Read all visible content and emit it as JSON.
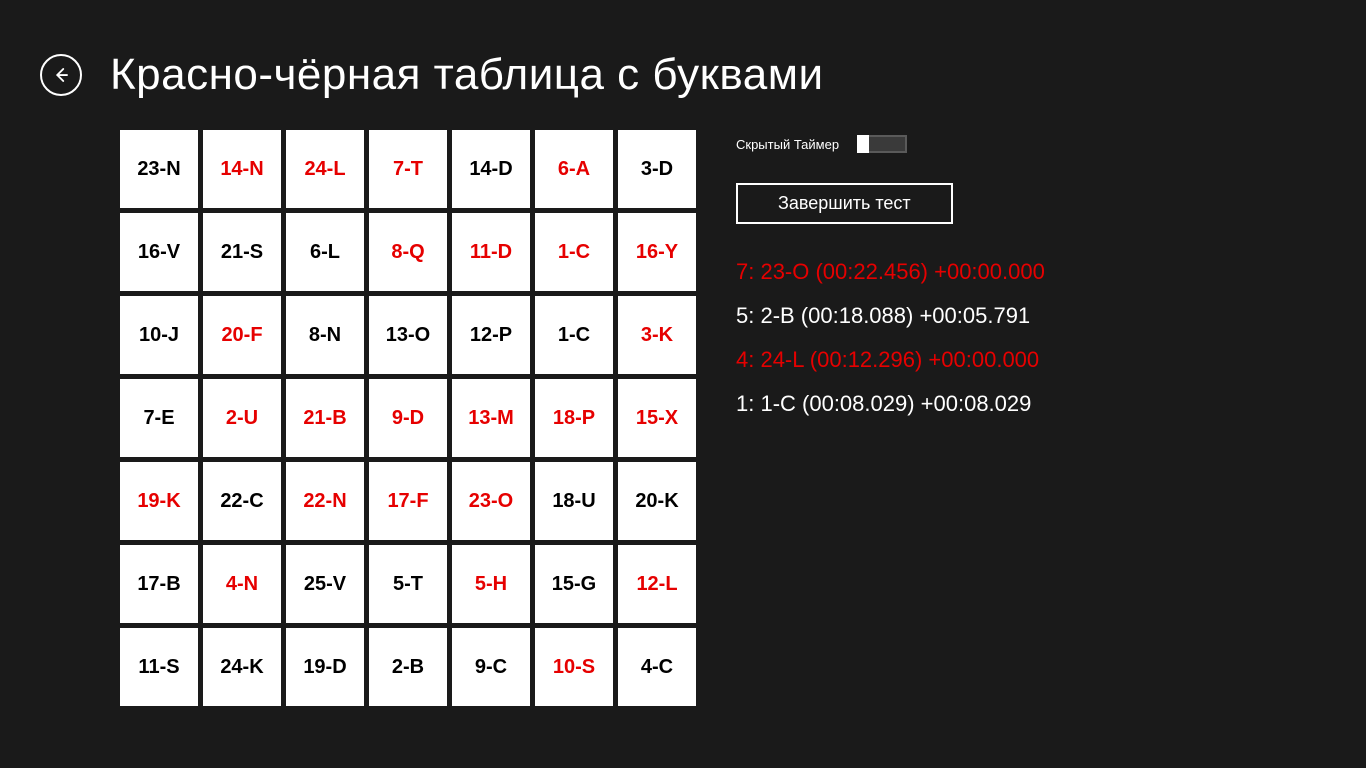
{
  "header": {
    "title": "Красно-чёрная таблица с буквами"
  },
  "grid": {
    "rows": 7,
    "cols": 7,
    "colors": {
      "black": "#000000",
      "red": "#e60000",
      "cell_bg": "#ffffff"
    },
    "cells": [
      {
        "label": "23-N",
        "color": "black"
      },
      {
        "label": "14-N",
        "color": "red"
      },
      {
        "label": "24-L",
        "color": "red"
      },
      {
        "label": "7-T",
        "color": "red"
      },
      {
        "label": "14-D",
        "color": "black"
      },
      {
        "label": "6-A",
        "color": "red"
      },
      {
        "label": "3-D",
        "color": "black"
      },
      {
        "label": "16-V",
        "color": "black"
      },
      {
        "label": "21-S",
        "color": "black"
      },
      {
        "label": "6-L",
        "color": "black"
      },
      {
        "label": "8-Q",
        "color": "red"
      },
      {
        "label": "11-D",
        "color": "red"
      },
      {
        "label": "1-C",
        "color": "red"
      },
      {
        "label": "16-Y",
        "color": "red"
      },
      {
        "label": "10-J",
        "color": "black"
      },
      {
        "label": "20-F",
        "color": "red"
      },
      {
        "label": "8-N",
        "color": "black"
      },
      {
        "label": "13-O",
        "color": "black"
      },
      {
        "label": "12-P",
        "color": "black"
      },
      {
        "label": "1-C",
        "color": "black"
      },
      {
        "label": "3-K",
        "color": "red"
      },
      {
        "label": "7-E",
        "color": "black"
      },
      {
        "label": "2-U",
        "color": "red"
      },
      {
        "label": "21-B",
        "color": "red"
      },
      {
        "label": "9-D",
        "color": "red"
      },
      {
        "label": "13-M",
        "color": "red"
      },
      {
        "label": "18-P",
        "color": "red"
      },
      {
        "label": "15-X",
        "color": "red"
      },
      {
        "label": "19-K",
        "color": "red"
      },
      {
        "label": "22-C",
        "color": "black"
      },
      {
        "label": "22-N",
        "color": "red"
      },
      {
        "label": "17-F",
        "color": "red"
      },
      {
        "label": "23-O",
        "color": "red"
      },
      {
        "label": "18-U",
        "color": "black"
      },
      {
        "label": "20-K",
        "color": "black"
      },
      {
        "label": "17-B",
        "color": "black"
      },
      {
        "label": "4-N",
        "color": "red"
      },
      {
        "label": "25-V",
        "color": "black"
      },
      {
        "label": "5-T",
        "color": "black"
      },
      {
        "label": "5-H",
        "color": "red"
      },
      {
        "label": "15-G",
        "color": "black"
      },
      {
        "label": "12-L",
        "color": "red"
      },
      {
        "label": "11-S",
        "color": "black"
      },
      {
        "label": "24-K",
        "color": "black"
      },
      {
        "label": "19-D",
        "color": "black"
      },
      {
        "label": "2-B",
        "color": "black"
      },
      {
        "label": "9-C",
        "color": "black"
      },
      {
        "label": "10-S",
        "color": "red"
      },
      {
        "label": "4-C",
        "color": "black"
      }
    ]
  },
  "side": {
    "timer_label": "Скрытый Таймер",
    "timer_toggle_on": false,
    "finish_button": "Завершить тест",
    "log": [
      {
        "text": "7: 23-O (00:22.456) +00:00.000",
        "color": "red"
      },
      {
        "text": "5: 2-B (00:18.088) +00:05.791",
        "color": "white"
      },
      {
        "text": "4: 24-L (00:12.296) +00:00.000",
        "color": "red"
      },
      {
        "text": "1: 1-C (00:08.029) +00:08.029",
        "color": "white"
      }
    ]
  },
  "theme": {
    "background": "#1a1a1a",
    "text": "#ffffff",
    "accent_red": "#e60000"
  }
}
